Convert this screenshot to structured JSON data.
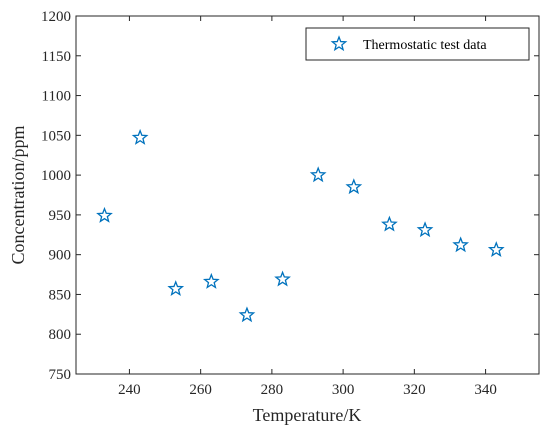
{
  "chart_data": {
    "type": "scatter",
    "title": "",
    "xlabel": "Temperature/K",
    "ylabel": "Concentration/ppm",
    "xlim": [
      225,
      355
    ],
    "ylim": [
      750,
      1200
    ],
    "xticks": [
      240,
      260,
      280,
      300,
      320,
      340
    ],
    "yticks": [
      750,
      800,
      850,
      900,
      950,
      1000,
      1050,
      1100,
      1150,
      1200
    ],
    "grid": false,
    "legend_position": "top-right",
    "marker": "star",
    "series": [
      {
        "name": "Thermostatic test data",
        "color": "#0072BD",
        "x": [
          233,
          243,
          253,
          263,
          273,
          283,
          293,
          303,
          313,
          323,
          333,
          343
        ],
        "y": [
          949,
          1047,
          857,
          866,
          824,
          869,
          1000,
          985,
          938,
          931,
          912,
          906
        ]
      }
    ]
  }
}
